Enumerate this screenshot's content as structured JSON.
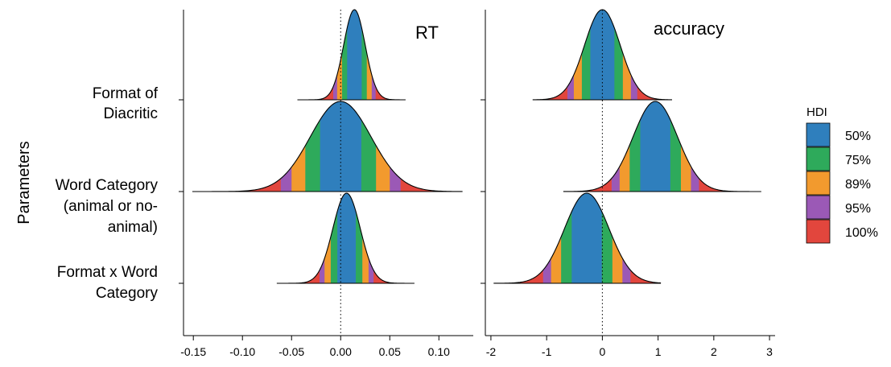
{
  "y_axis_label": "Parameters",
  "parameters": [
    [
      "Format of",
      "Diacritic"
    ],
    [
      "Word Category",
      "(animal or no-",
      "animal)"
    ],
    [
      "Format x Word",
      "Category"
    ]
  ],
  "legend": {
    "title": "HDI",
    "entries": [
      {
        "label": "50%",
        "color": "#2f7fbd"
      },
      {
        "label": "75%",
        "color": "#2eaa5b"
      },
      {
        "label": "89%",
        "color": "#f29a2e"
      },
      {
        "label": "95%",
        "color": "#9b59b6"
      },
      {
        "label": "100%",
        "color": "#e2463d"
      }
    ]
  },
  "chart_data": [
    {
      "type": "area",
      "title": "RT",
      "grid": false,
      "xlim": [
        -0.16,
        0.135
      ],
      "xticks": [
        -0.15,
        -0.1,
        -0.05,
        0.0,
        0.05,
        0.1
      ],
      "xtick_labels": [
        "-0.15",
        "-0.10",
        "-0.05",
        "0.00",
        "0.05",
        "0.10"
      ],
      "reference_line": 0,
      "series": [
        {
          "parameter": "Format of Diacritic",
          "mode": 0.014,
          "sd": 0.011,
          "min": -0.044,
          "max": 0.066,
          "hdi_half_widths": [
            0.0074,
            0.0126,
            0.0176,
            0.0216,
            0.052
          ]
        },
        {
          "parameter": "Word Category (animal or no-animal)",
          "mode": 0.0,
          "sd": 0.031,
          "min": -0.151,
          "max": 0.124,
          "hdi_half_widths": [
            0.021,
            0.036,
            0.05,
            0.061,
            0.137
          ]
        },
        {
          "parameter": "Format x Word Category",
          "mode": 0.006,
          "sd": 0.014,
          "min": -0.065,
          "max": 0.075,
          "hdi_half_widths": [
            0.0094,
            0.0161,
            0.0224,
            0.0275,
            0.07
          ]
        }
      ]
    },
    {
      "type": "area",
      "title": "accuracy",
      "grid": false,
      "xlim": [
        -2.1,
        3.1
      ],
      "xticks": [
        -2,
        -1,
        0,
        1,
        2,
        3
      ],
      "xtick_labels": [
        "-2",
        "-1",
        "0",
        "1",
        "2",
        "3"
      ],
      "reference_line": 0,
      "series": [
        {
          "parameter": "Format of Diacritic",
          "mode": 0.0,
          "sd": 0.32,
          "min": -1.25,
          "max": 1.25,
          "hdi_half_widths": [
            0.216,
            0.368,
            0.512,
            0.627,
            1.25
          ]
        },
        {
          "parameter": "Word Category (animal or no-animal)",
          "mode": 0.95,
          "sd": 0.4,
          "min": -0.7,
          "max": 2.85,
          "hdi_half_widths": [
            0.27,
            0.46,
            0.64,
            0.784,
            1.8
          ]
        },
        {
          "parameter": "Format x Word Category",
          "mode": -0.28,
          "sd": 0.4,
          "min": -1.95,
          "max": 1.05,
          "hdi_half_widths": [
            0.27,
            0.46,
            0.64,
            0.784,
            1.67
          ]
        }
      ]
    }
  ]
}
